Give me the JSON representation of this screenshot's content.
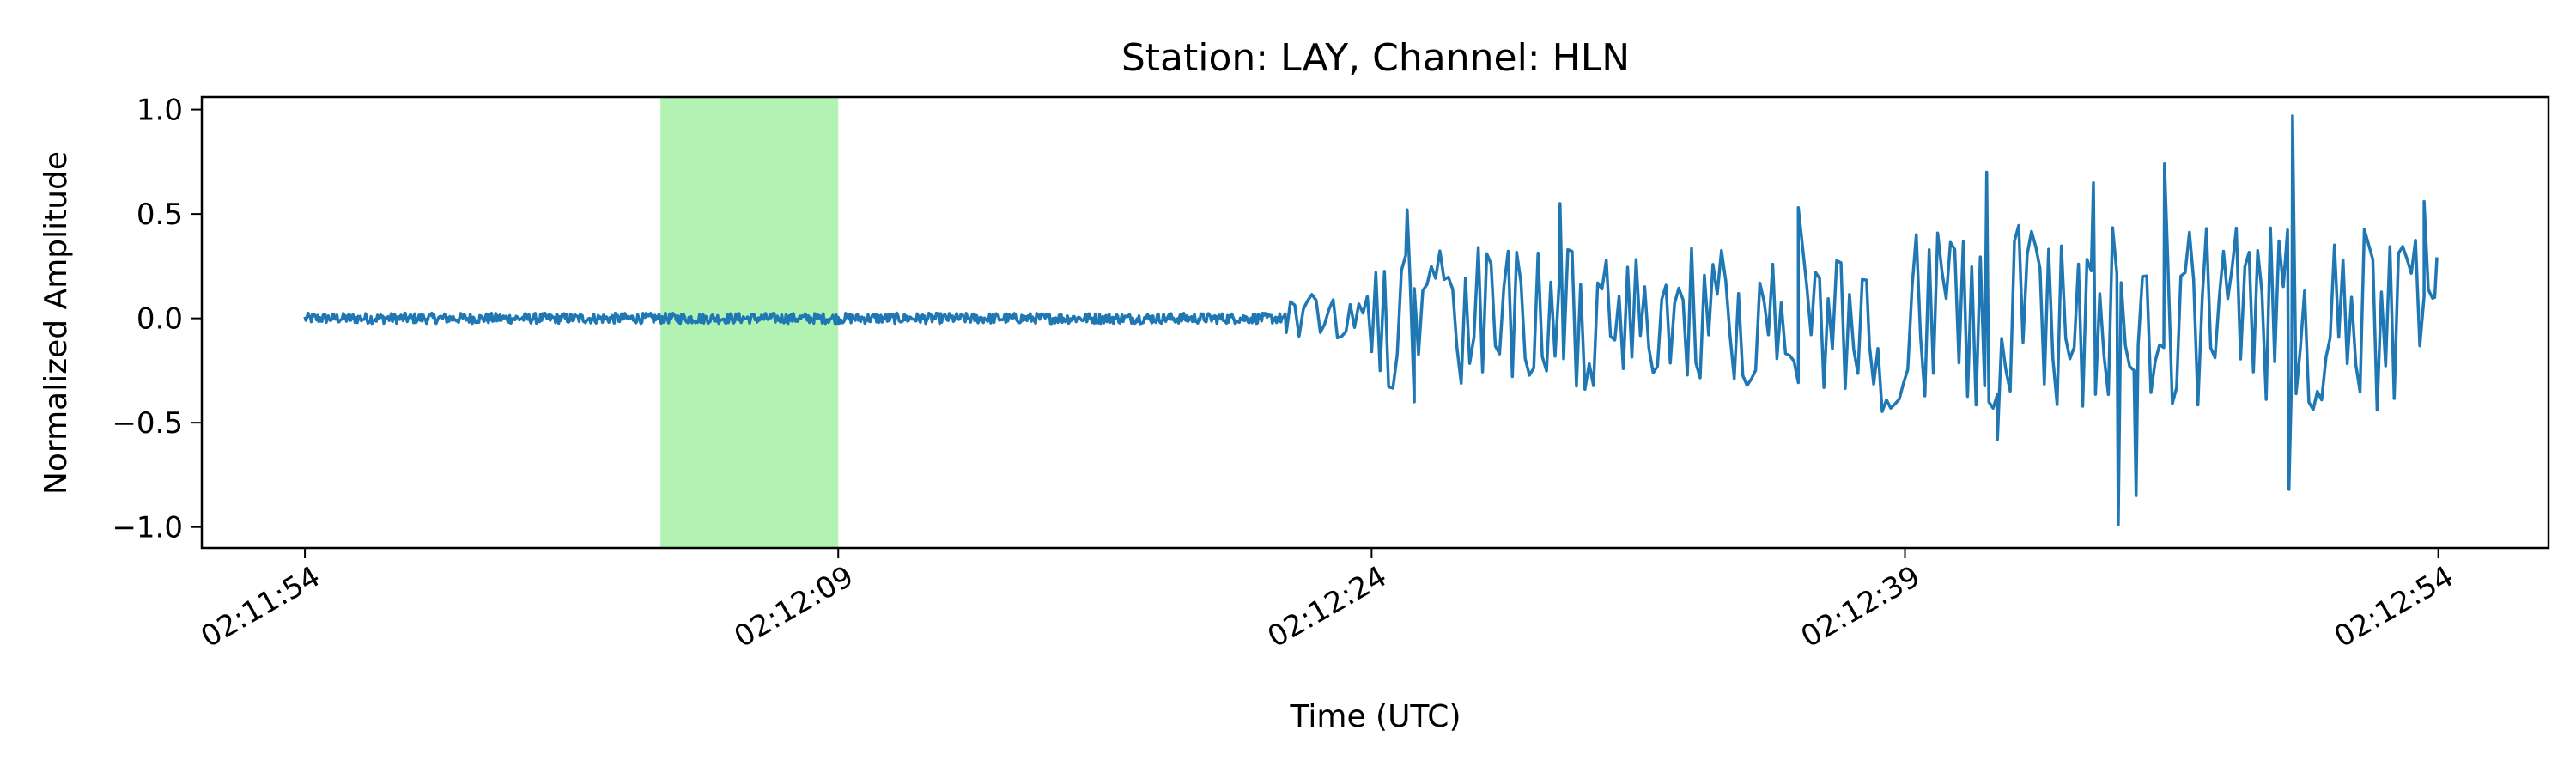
{
  "chart_data": {
    "type": "line",
    "title": "Station: LAY, Channel: HLN",
    "xlabel": "Time (UTC)",
    "ylabel": "Normalized Amplitude",
    "x_ticks": [
      "02:11:54",
      "02:12:09",
      "02:12:24",
      "02:12:39",
      "02:12:54"
    ],
    "x_tick_seconds": [
      0,
      15,
      30,
      45,
      60
    ],
    "xlim_seconds": [
      -2.9,
      63.1
    ],
    "y_ticks": [
      "1.0",
      "0.5",
      "0.0",
      "−0.5",
      "−1.0"
    ],
    "y_tick_values": [
      1.0,
      0.5,
      0.0,
      -0.5,
      -1.0
    ],
    "ylim": [
      -1.1,
      1.06
    ],
    "grid": false,
    "highlight": {
      "start_seconds": 10,
      "end_seconds": 15,
      "color": "#b2f2b2"
    },
    "series": [
      {
        "color": "#1f77b4",
        "segments": [
          {
            "t_start": 0,
            "t_end": 27.6,
            "amplitude": 0.025
          },
          {
            "t_start": 27.6,
            "t_end": 30,
            "amplitude": 0.12
          },
          {
            "t_start": 30,
            "t_end": 44,
            "amplitude": 0.35
          },
          {
            "t_start": 44,
            "t_end": 60,
            "amplitude": 0.45
          }
        ],
        "peaks": [
          {
            "t": 31.0,
            "y": 0.52
          },
          {
            "t": 31.2,
            "y": -0.4
          },
          {
            "t": 35.3,
            "y": 0.55
          },
          {
            "t": 42.0,
            "y": 0.53
          },
          {
            "t": 47.3,
            "y": 0.7
          },
          {
            "t": 47.6,
            "y": -0.58
          },
          {
            "t": 50.3,
            "y": 0.65
          },
          {
            "t": 51.0,
            "y": -0.99
          },
          {
            "t": 51.5,
            "y": -0.85
          },
          {
            "t": 52.3,
            "y": 0.74
          },
          {
            "t": 55.9,
            "y": 0.97
          },
          {
            "t": 55.8,
            "y": -0.82
          },
          {
            "t": 59.6,
            "y": 0.56
          },
          {
            "t": 59.9,
            "y": 0.1
          }
        ]
      }
    ]
  }
}
